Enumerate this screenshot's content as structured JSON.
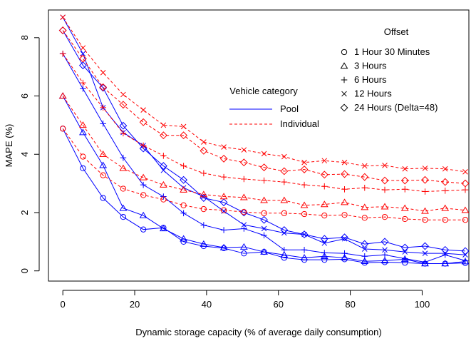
{
  "chart_data": {
    "type": "line",
    "xlabel": "Dynamic storage capacity (% of average daily consumption)",
    "ylabel": "MAPE (%)",
    "xlim": [
      -4,
      113
    ],
    "ylim": [
      -0.35,
      8.95
    ],
    "x_ticks": [
      0,
      20,
      40,
      60,
      80,
      100
    ],
    "y_ticks": [
      0,
      2,
      4,
      6,
      8
    ],
    "grid": false,
    "x": [
      0,
      5.6,
      11.2,
      16.8,
      22.4,
      28,
      33.6,
      39.2,
      44.8,
      50.4,
      56,
      61.6,
      67.2,
      72.8,
      78.4,
      84,
      89.6,
      95.2,
      100.8,
      106.4,
      112
    ],
    "category_legend": {
      "title": "Vehicle category",
      "entries": [
        {
          "label": "Pool",
          "color": "#0000ff",
          "dash": "solid"
        },
        {
          "label": "Individual",
          "color": "#ff0000",
          "dash": "dashed"
        }
      ]
    },
    "offset_legend": {
      "title": "Offset",
      "entries": [
        {
          "label": "1 Hour 30 Minutes",
          "symbol": "circle"
        },
        {
          "label": "3 Hours",
          "symbol": "triangle"
        },
        {
          "label": "6 Hours",
          "symbol": "plus"
        },
        {
          "label": "12 Hours",
          "symbol": "cross"
        },
        {
          "label": "24 Hours (Delta=48)",
          "symbol": "diamond"
        }
      ]
    },
    "series": [
      {
        "category": "Pool",
        "symbol": "circle",
        "values": [
          4.88,
          3.52,
          2.5,
          1.85,
          1.42,
          1.48,
          1.0,
          0.85,
          0.78,
          0.6,
          0.65,
          0.45,
          0.38,
          0.38,
          0.4,
          0.28,
          0.3,
          0.28,
          0.25,
          0.25,
          0.27
        ]
      },
      {
        "category": "Pool",
        "symbol": "triangle",
        "values": [
          6.0,
          4.75,
          3.62,
          2.15,
          1.9,
          1.45,
          1.1,
          0.92,
          0.8,
          0.82,
          0.65,
          0.55,
          0.45,
          0.5,
          0.45,
          0.33,
          0.35,
          0.4,
          0.25,
          0.25,
          0.32
        ]
      },
      {
        "category": "Pool",
        "symbol": "plus",
        "values": [
          7.45,
          6.25,
          5.05,
          3.88,
          2.95,
          2.55,
          1.98,
          1.57,
          1.4,
          1.45,
          1.22,
          0.72,
          0.72,
          0.62,
          0.6,
          0.5,
          0.55,
          0.42,
          0.3,
          0.55,
          0.35
        ]
      },
      {
        "category": "Pool",
        "symbol": "cross",
        "values": [
          8.7,
          7.45,
          5.6,
          4.75,
          4.3,
          3.45,
          2.85,
          2.55,
          2.05,
          1.58,
          1.45,
          1.3,
          1.25,
          0.95,
          1.1,
          0.75,
          0.72,
          0.65,
          0.6,
          0.6,
          0.55
        ]
      },
      {
        "category": "Pool",
        "symbol": "diamond",
        "values": [
          8.25,
          7.05,
          6.28,
          4.98,
          4.2,
          3.6,
          3.12,
          2.5,
          2.35,
          2.0,
          1.75,
          1.4,
          1.25,
          1.1,
          1.15,
          0.92,
          1.0,
          0.8,
          0.85,
          0.72,
          0.68
        ]
      },
      {
        "category": "Individual",
        "symbol": "circle",
        "values": [
          4.88,
          3.92,
          3.28,
          2.82,
          2.6,
          2.45,
          2.25,
          2.12,
          2.08,
          2.02,
          1.98,
          1.98,
          1.95,
          1.9,
          1.92,
          1.82,
          1.85,
          1.78,
          1.75,
          1.75,
          1.75
        ]
      },
      {
        "category": "Individual",
        "symbol": "triangle",
        "values": [
          6.0,
          5.0,
          4.0,
          3.52,
          3.2,
          2.95,
          2.78,
          2.62,
          2.55,
          2.52,
          2.42,
          2.42,
          2.25,
          2.28,
          2.35,
          2.18,
          2.2,
          2.15,
          2.05,
          2.15,
          2.08
        ]
      },
      {
        "category": "Individual",
        "symbol": "plus",
        "values": [
          7.45,
          6.45,
          5.6,
          4.72,
          4.3,
          3.95,
          3.6,
          3.35,
          3.22,
          3.15,
          3.1,
          3.05,
          2.95,
          2.9,
          2.8,
          2.85,
          2.78,
          2.8,
          2.72,
          2.75,
          2.78
        ]
      },
      {
        "category": "Individual",
        "symbol": "cross",
        "values": [
          8.7,
          7.65,
          6.8,
          6.05,
          5.52,
          5.0,
          4.95,
          4.42,
          4.25,
          4.15,
          4.02,
          3.92,
          3.72,
          3.78,
          3.72,
          3.6,
          3.62,
          3.5,
          3.52,
          3.5,
          3.4
        ]
      },
      {
        "category": "Individual",
        "symbol": "diamond",
        "values": [
          8.25,
          7.28,
          6.3,
          5.7,
          5.1,
          4.65,
          4.65,
          4.12,
          3.85,
          3.72,
          3.55,
          3.42,
          3.48,
          3.3,
          3.32,
          3.22,
          3.1,
          3.1,
          3.12,
          3.05,
          3.0
        ]
      }
    ]
  }
}
